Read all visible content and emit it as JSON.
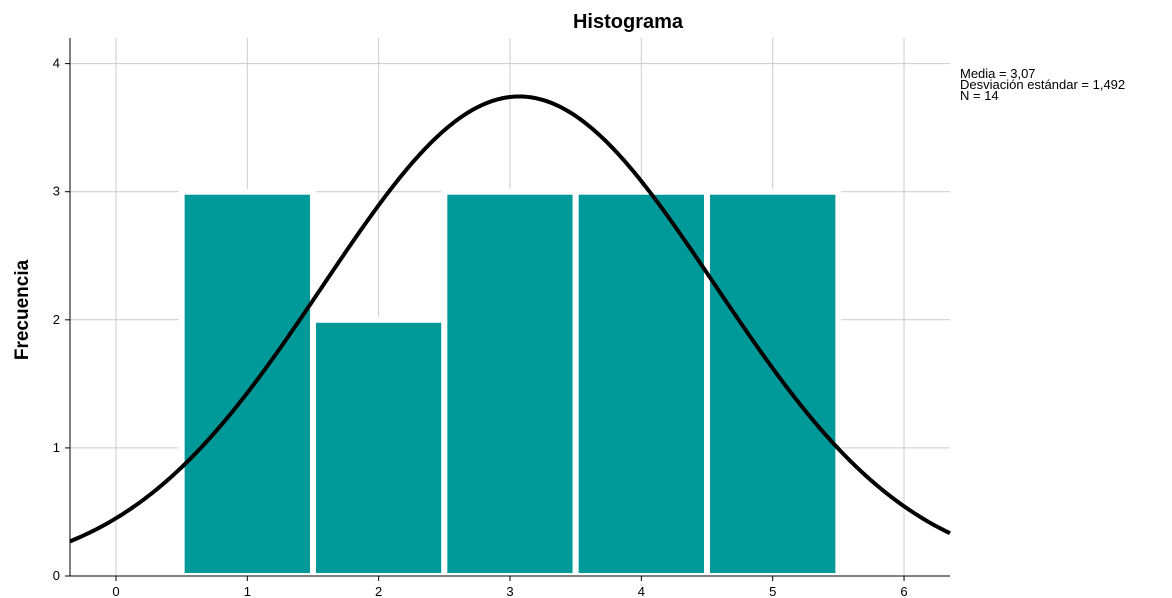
{
  "chart_data": {
    "type": "bar",
    "title": "Histograma",
    "xlabel": "",
    "ylabel": "Frecuencia",
    "xlim": [
      -0.35,
      6.35
    ],
    "ylim": [
      0,
      4.2
    ],
    "x_ticks": [
      "0",
      "1",
      "2",
      "3",
      "4",
      "5",
      "6"
    ],
    "y_ticks": [
      "0",
      "1",
      "2",
      "3",
      "4"
    ],
    "grid": true,
    "bins": [
      {
        "x": 1,
        "value": 3
      },
      {
        "x": 2,
        "value": 2
      },
      {
        "x": 3,
        "value": 3
      },
      {
        "x": 4,
        "value": 3
      },
      {
        "x": 5,
        "value": 3
      }
    ],
    "normal_curve": {
      "mean": 3.07,
      "std": 1.492,
      "n": 14
    },
    "stats": [
      "Media = 3,07",
      "Desviación estándar = 1,492",
      "N = 14"
    ],
    "bar_color": "#009999",
    "curve_color": "#000000",
    "grid_color": "#cccccc"
  }
}
